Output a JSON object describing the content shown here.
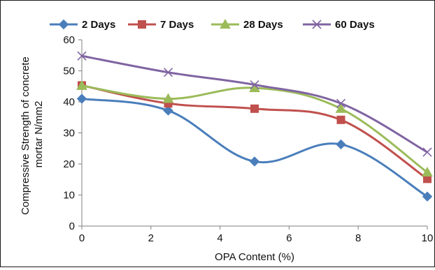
{
  "chart_data": {
    "type": "line",
    "title": "",
    "xlabel": "OPA Content (%)",
    "ylabel_lines": [
      "Compressive Strength of concrete",
      "mortar N/mm2"
    ],
    "x": [
      0,
      2.5,
      5,
      7.5,
      10
    ],
    "xlim": [
      0,
      10
    ],
    "ylim": [
      0,
      60
    ],
    "x_ticks": [
      "0",
      "2",
      "4",
      "6",
      "8",
      "10"
    ],
    "y_ticks": [
      "0",
      "10",
      "20",
      "30",
      "40",
      "50",
      "60"
    ],
    "smooth": true,
    "grid": false,
    "legend_position": "top",
    "series": [
      {
        "name": "2 Days",
        "values": [
          41,
          37.2,
          20.8,
          26.3,
          9.5
        ],
        "color": "#4a7ebb",
        "marker": "diamond"
      },
      {
        "name": "7 Days",
        "values": [
          45.3,
          39.5,
          37.8,
          34.2,
          15.2
        ],
        "color": "#c0504d",
        "marker": "square"
      },
      {
        "name": "28 Days",
        "values": [
          45.2,
          41,
          44.5,
          37.8,
          17.3
        ],
        "color": "#9bbb59",
        "marker": "triangle"
      },
      {
        "name": "60 Days",
        "values": [
          54.8,
          49.5,
          45.5,
          39.5,
          23.8
        ],
        "color": "#8064a2",
        "marker": "x"
      }
    ]
  }
}
